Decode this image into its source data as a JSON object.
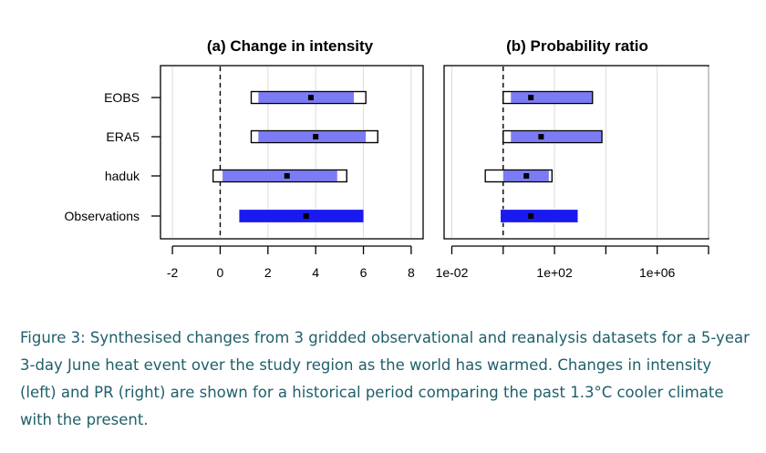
{
  "chart_data": [
    {
      "type": "interval",
      "title": "(a) Change in intensity",
      "categories": [
        "EOBS",
        "ERA5",
        "haduk",
        "Observations"
      ],
      "xlim": [
        -2.5,
        8.5
      ],
      "xticks": [
        -2,
        0,
        2,
        4,
        6,
        8
      ],
      "xtick_labels": [
        "-2",
        "0",
        "2",
        "4",
        "6",
        "8"
      ],
      "reference_line": 0,
      "rows": [
        {
          "category": "EOBS",
          "best": 3.8,
          "inner": [
            1.6,
            5.6
          ],
          "outer": [
            1.3,
            6.1
          ]
        },
        {
          "category": "ERA5",
          "best": 4.0,
          "inner": [
            1.6,
            6.1
          ],
          "outer": [
            1.3,
            6.6
          ]
        },
        {
          "category": "haduk",
          "best": 2.8,
          "inner": [
            0.1,
            4.9
          ],
          "outer": [
            -0.3,
            5.3
          ]
        },
        {
          "category": "Observations",
          "best": 3.6,
          "inner": [
            0.8,
            6.0
          ],
          "outer": [
            0.8,
            6.0
          ]
        }
      ]
    },
    {
      "type": "interval",
      "title": "(b) Probability ratio",
      "categories": [
        "EOBS",
        "ERA5",
        "haduk",
        "Observations"
      ],
      "scale": "log",
      "xlim": [
        0.005,
        100000000
      ],
      "xticks": [
        0.01,
        1,
        100,
        10000,
        1000000,
        100000000
      ],
      "xtick_labels": [
        "1e-02",
        "",
        "1e+02",
        "",
        "1e+06",
        ""
      ],
      "reference_line": 1,
      "rows": [
        {
          "category": "EOBS",
          "best": 12,
          "inner": [
            2,
            3000
          ],
          "outer": [
            1,
            3000
          ]
        },
        {
          "category": "ERA5",
          "best": 30,
          "inner": [
            2,
            7000
          ],
          "outer": [
            1,
            7000
          ]
        },
        {
          "category": "haduk",
          "best": 8,
          "inner": [
            1,
            60
          ],
          "outer": [
            0.2,
            80
          ]
        },
        {
          "category": "Observations",
          "best": 12,
          "inner": [
            0.8,
            800
          ],
          "outer": [
            0.8,
            800
          ]
        }
      ]
    }
  ],
  "colors": {
    "inner_bar": "#7b7bf5",
    "observations_bar": "#1a1af0",
    "bar_outline": "#000000",
    "caption_text": "#1f5f6b"
  },
  "caption": "Figure 3: Synthesised changes from 3 gridded observational and reanalysis datasets for a 5-year 3-day June heat event over the study region as the world has warmed. Changes in intensity (left) and PR (right) are shown for a historical period comparing the past 1.3°C cooler climate with the present."
}
